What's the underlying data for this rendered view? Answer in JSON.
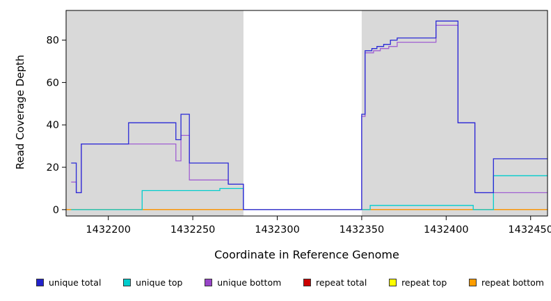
{
  "chart_data": {
    "type": "line",
    "step": true,
    "title": "",
    "xlabel": "Coordinate in Reference Genome",
    "ylabel": "Read Coverage Depth",
    "xlim": [
      1432175,
      1432460
    ],
    "ylim": [
      -3,
      94
    ],
    "x_ticks": [
      1432200,
      1432250,
      1432300,
      1432350,
      1432400,
      1432450
    ],
    "y_ticks": [
      0,
      20,
      40,
      60,
      80
    ],
    "grid": false,
    "plot_background": "#ffffff",
    "background_regions": [
      {
        "x0": 1432175,
        "x1": 1432280,
        "color": "#d9d9d9"
      },
      {
        "x0": 1432350,
        "x1": 1432460,
        "color": "#d9d9d9"
      }
    ],
    "series": [
      {
        "name": "repeat top",
        "color": "#ffff00",
        "points": [
          [
            1432175,
            0
          ],
          [
            1432460,
            0
          ]
        ]
      },
      {
        "name": "repeat total",
        "color": "#cc0000",
        "points": [
          [
            1432175,
            0
          ],
          [
            1432460,
            0
          ]
        ]
      },
      {
        "name": "repeat bottom",
        "color": "#ff9d00",
        "points": [
          [
            1432175,
            0
          ],
          [
            1432460,
            0
          ]
        ]
      },
      {
        "name": "unique top",
        "color": "#00cdcd",
        "points": [
          [
            1432178,
            0
          ],
          [
            1432220,
            9
          ],
          [
            1432266,
            10
          ],
          [
            1432280,
            0
          ],
          [
            1432355,
            2
          ],
          [
            1432416,
            0
          ],
          [
            1432428,
            16
          ],
          [
            1432460,
            16
          ]
        ]
      },
      {
        "name": "unique bottom",
        "color": "#a05fd2",
        "points": [
          [
            1432178,
            13
          ],
          [
            1432181,
            8
          ],
          [
            1432184,
            31
          ],
          [
            1432240,
            23
          ],
          [
            1432243,
            35
          ],
          [
            1432248,
            14
          ],
          [
            1432271,
            12
          ],
          [
            1432280,
            0
          ],
          [
            1432350,
            44
          ],
          [
            1432352,
            74
          ],
          [
            1432357,
            75
          ],
          [
            1432361,
            76
          ],
          [
            1432366,
            77
          ],
          [
            1432371,
            79
          ],
          [
            1432394,
            87
          ],
          [
            1432407,
            41
          ],
          [
            1432417,
            8
          ],
          [
            1432460,
            8
          ]
        ]
      },
      {
        "name": "unique total",
        "color": "#2929d6",
        "points": [
          [
            1432178,
            22
          ],
          [
            1432181,
            8
          ],
          [
            1432184,
            31
          ],
          [
            1432212,
            41
          ],
          [
            1432240,
            33
          ],
          [
            1432243,
            45
          ],
          [
            1432248,
            22
          ],
          [
            1432271,
            12
          ],
          [
            1432280,
            0
          ],
          [
            1432350,
            45
          ],
          [
            1432352,
            75
          ],
          [
            1432356,
            76
          ],
          [
            1432359,
            77
          ],
          [
            1432363,
            78
          ],
          [
            1432367,
            80
          ],
          [
            1432371,
            81
          ],
          [
            1432394,
            89
          ],
          [
            1432407,
            41
          ],
          [
            1432417,
            8
          ],
          [
            1432428,
            24
          ],
          [
            1432460,
            24
          ]
        ]
      }
    ],
    "legend": [
      {
        "label": "unique total",
        "color": "#2222cc"
      },
      {
        "label": "unique top",
        "color": "#00cdcd"
      },
      {
        "label": "unique bottom",
        "color": "#9844c8"
      },
      {
        "label": "repeat total",
        "color": "#cc0000"
      },
      {
        "label": "repeat top",
        "color": "#ffff00"
      },
      {
        "label": "repeat bottom",
        "color": "#ff9d00"
      }
    ]
  }
}
